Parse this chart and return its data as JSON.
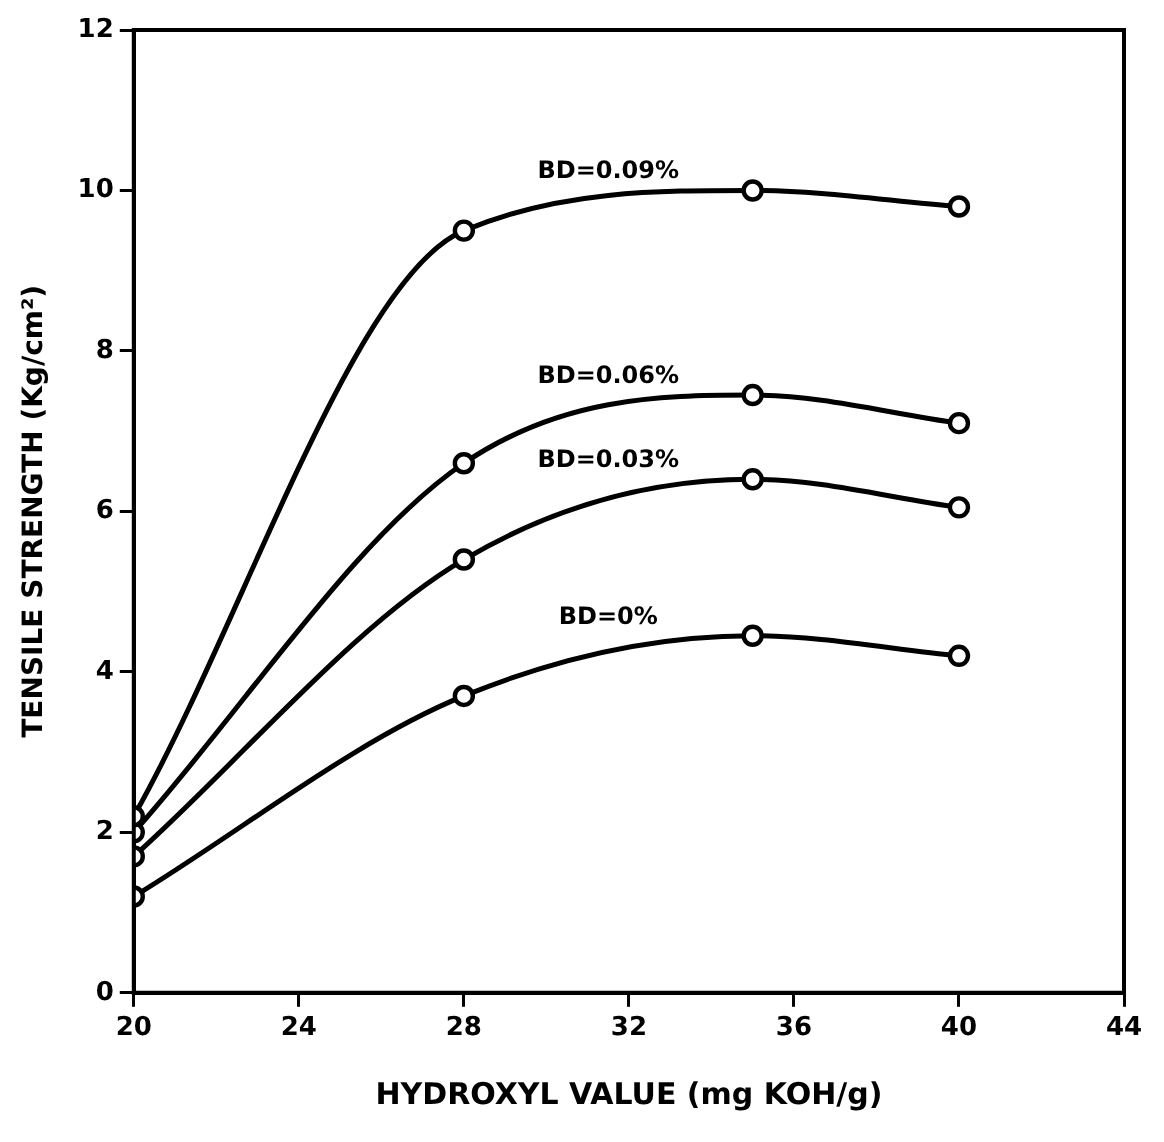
{
  "chart_data": {
    "type": "line",
    "xlabel": "HYDROXYL VALUE (mg KOH/g)",
    "ylabel": "TENSILE STRENGTH (Kg/cm²)",
    "x": [
      20,
      28,
      35,
      40
    ],
    "series": [
      {
        "name": "BD=0.09%",
        "color": "#000000",
        "values": [
          2.2,
          9.5,
          10.0,
          9.8
        ]
      },
      {
        "name": "BD=0.06%",
        "color": "#000000",
        "values": [
          2.0,
          6.6,
          7.45,
          7.1
        ]
      },
      {
        "name": "BD=0.03%",
        "color": "#000000",
        "values": [
          1.7,
          5.4,
          6.4,
          6.05
        ]
      },
      {
        "name": "BD=0%",
        "color": "#000000",
        "values": [
          1.2,
          3.7,
          4.45,
          4.2
        ]
      }
    ],
    "xlim": [
      20,
      44
    ],
    "xticks": [
      20,
      24,
      28,
      32,
      36,
      40,
      44
    ],
    "ylim": [
      0,
      12
    ],
    "yticks": [
      0,
      2,
      4,
      6,
      8,
      10,
      12
    ],
    "grid": false,
    "legend": false,
    "marker": "circle",
    "line_style": "solid"
  }
}
